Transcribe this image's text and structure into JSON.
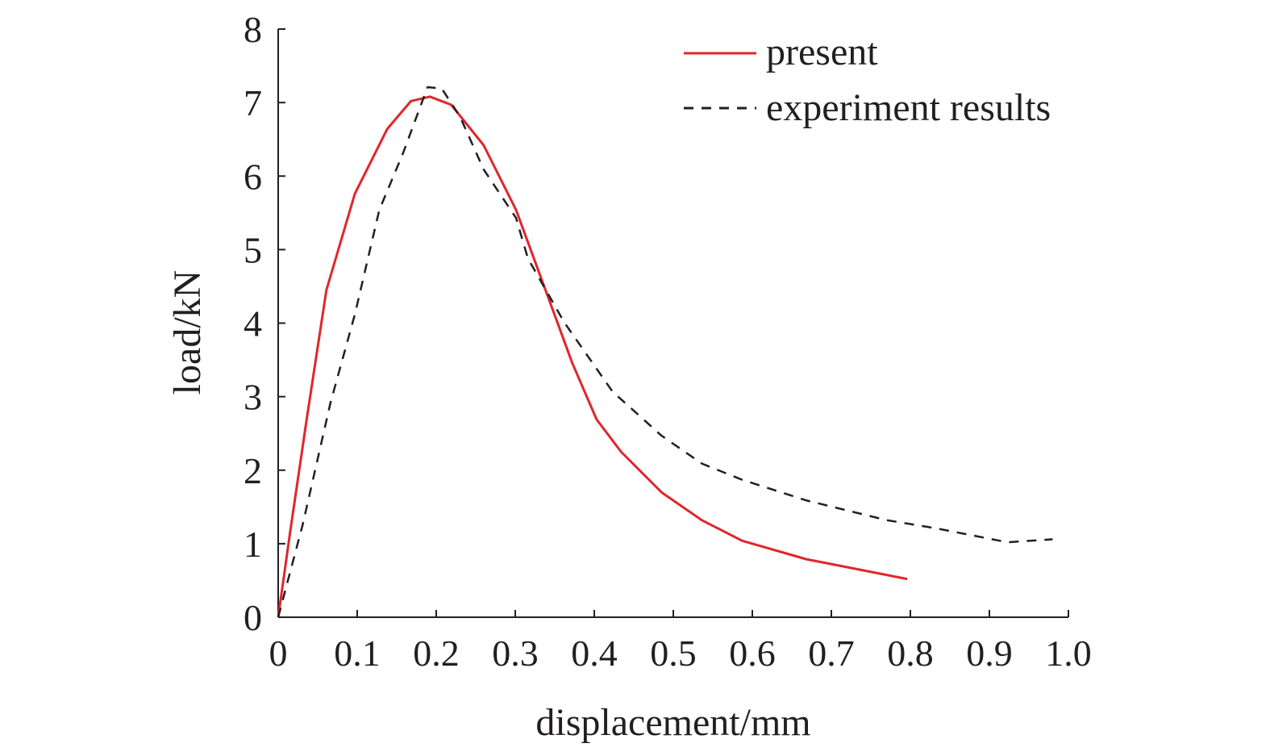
{
  "chart_data": {
    "type": "line",
    "title": "",
    "xlabel": "displacement/mm",
    "ylabel": "load/kN",
    "xlim": [
      0,
      1.0
    ],
    "ylim": [
      0,
      8
    ],
    "xticks": [
      "0",
      "0.1",
      "0.2",
      "0.3",
      "0.4",
      "0.5",
      "0.6",
      "0.7",
      "0.8",
      "0.9",
      "1.0"
    ],
    "yticks": [
      "0",
      "1",
      "2",
      "3",
      "4",
      "5",
      "6",
      "7",
      "8"
    ],
    "grid": false,
    "legend_position": "top-right",
    "series": [
      {
        "name": "present",
        "color": "#e0262b",
        "style": "solid",
        "x": [
          0,
          0.015,
          0.036,
          0.061,
          0.097,
          0.138,
          0.168,
          0.192,
          0.219,
          0.26,
          0.301,
          0.342,
          0.372,
          0.403,
          0.434,
          0.485,
          0.536,
          0.587,
          0.668,
          0.796
        ],
        "y": [
          0,
          1.15,
          2.69,
          4.45,
          5.76,
          6.64,
          7.02,
          7.08,
          6.97,
          6.42,
          5.54,
          4.34,
          3.46,
          2.69,
          2.25,
          1.7,
          1.32,
          1.04,
          0.79,
          0.52
        ]
      },
      {
        "name": "experiment results",
        "color": "#231f20",
        "style": "dashed",
        "x": [
          0,
          0.031,
          0.066,
          0.097,
          0.128,
          0.158,
          0.189,
          0.207,
          0.23,
          0.26,
          0.301,
          0.316,
          0.362,
          0.423,
          0.485,
          0.536,
          0.587,
          0.668,
          0.77,
          0.832,
          0.923,
          0.98
        ],
        "y": [
          0,
          1.26,
          2.91,
          4.12,
          5.54,
          6.31,
          7.21,
          7.19,
          6.81,
          6.09,
          5.43,
          4.88,
          4.01,
          3.07,
          2.47,
          2.09,
          1.87,
          1.59,
          1.32,
          1.21,
          1.02,
          1.06
        ]
      }
    ]
  }
}
